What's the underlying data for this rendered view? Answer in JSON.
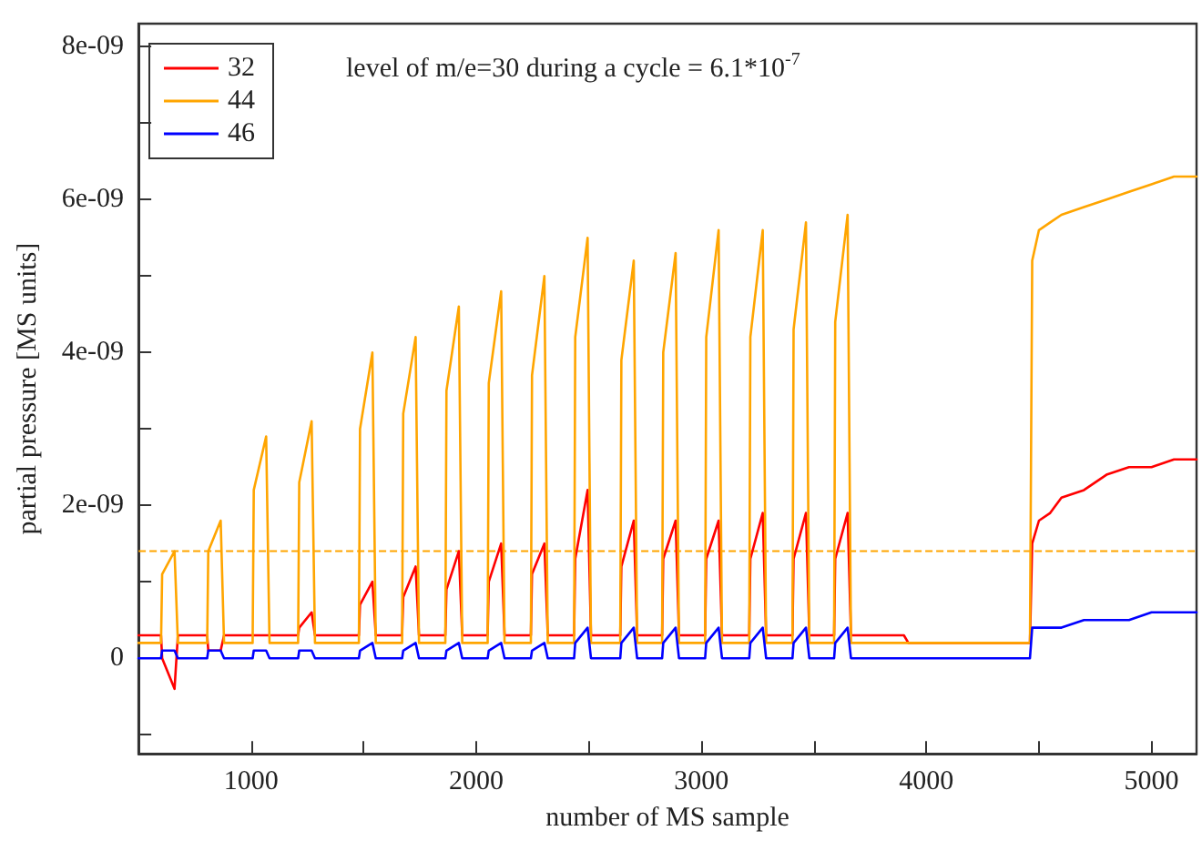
{
  "chart_data": {
    "type": "line",
    "xlabel": "number of MS sample",
    "ylabel": "partial pressure [MS units]",
    "annotations": [
      "level of m/e=30 during a cycle = 6.1*10$^{-7}$"
    ],
    "xlim": [
      500,
      5200
    ],
    "xticks": [
      {
        "value": 500,
        "label": null
      },
      1000,
      {
        "value": 1500,
        "label": null
      },
      2000,
      {
        "value": 2500,
        "label": null
      },
      3000,
      {
        "value": 3500,
        "label": null
      },
      4000,
      {
        "value": 4500,
        "label": null
      },
      5000
    ],
    "ylim": [
      -1.25e-09,
      8.3e-09
    ],
    "yticks": [
      {
        "value": -1e-09,
        "label": null
      },
      0,
      {
        "value": 1e-09,
        "label": null
      },
      {
        "value": 2e-09,
        "label": "2e-09"
      },
      {
        "value": 3e-09,
        "label": null
      },
      {
        "value": 4e-09,
        "label": "4e-09"
      },
      {
        "value": 5e-09,
        "label": null
      },
      {
        "value": 6e-09,
        "label": "6e-09"
      },
      {
        "value": 7e-09,
        "label": null
      },
      {
        "value": 8e-09,
        "label": "8e-09"
      }
    ],
    "grid": false,
    "legend": "top left",
    "marker": "none",
    "line_style": "solid",
    "ref_lines": [
      {
        "axis": "y",
        "value": 1.4e-09,
        "label": null,
        "color": "#ffa500",
        "line_style": "dashed"
      }
    ],
    "x": [
      500,
      600,
      605,
      660,
      675,
      805,
      810,
      865,
      880,
      1007,
      1012,
      1067,
      1082,
      1209,
      1214,
      1269,
      1284,
      1479,
      1484,
      1539,
      1554,
      1671,
      1676,
      1731,
      1746,
      1863,
      1868,
      1923,
      1938,
      2051,
      2056,
      2111,
      2126,
      2243,
      2248,
      2303,
      2318,
      2435,
      2440,
      2495,
      2510,
      2640,
      2645,
      2700,
      2715,
      2826,
      2831,
      2886,
      2901,
      3017,
      3022,
      3077,
      3092,
      3213,
      3218,
      3273,
      3288,
      3405,
      3410,
      3465,
      3480,
      3590,
      3595,
      3650,
      3665,
      3900,
      3920,
      4460,
      4470,
      4500,
      4550,
      4600,
      4700,
      4800,
      4900,
      5000,
      5100,
      5200
    ],
    "series": [
      {
        "name": "32",
        "color": "#ff0000",
        "values": [
          3e-10,
          3e-10,
          0,
          -4e-10,
          3e-10,
          3e-10,
          1e-10,
          1e-10,
          3e-10,
          3e-10,
          3e-10,
          3e-10,
          3e-10,
          3e-10,
          4e-10,
          6e-10,
          3e-10,
          3e-10,
          7e-10,
          1e-09,
          3e-10,
          3e-10,
          8e-10,
          1.2e-09,
          3e-10,
          3e-10,
          9e-10,
          1.4e-09,
          3e-10,
          3e-10,
          1e-09,
          1.5e-09,
          3e-10,
          3e-10,
          1.1e-09,
          1.5e-09,
          3e-10,
          3e-10,
          1.3e-09,
          2.2e-09,
          3e-10,
          3e-10,
          1.2e-09,
          1.8e-09,
          3e-10,
          3e-10,
          1.3e-09,
          1.8e-09,
          3e-10,
          3e-10,
          1.3e-09,
          1.8e-09,
          3e-10,
          3e-10,
          1.3e-09,
          1.9e-09,
          3e-10,
          3e-10,
          1.3e-09,
          1.9e-09,
          3e-10,
          3e-10,
          1.3e-09,
          1.9e-09,
          3e-10,
          3e-10,
          2e-10,
          2e-10,
          1.5e-09,
          1.8e-09,
          1.9e-09,
          2.1e-09,
          2.2e-09,
          2.4e-09,
          2.5e-09,
          2.5e-09,
          2.6e-09,
          2.6e-09
        ]
      },
      {
        "name": "44",
        "color": "#ffa500",
        "values": [
          2e-10,
          2e-10,
          1.1e-09,
          1.4e-09,
          2e-10,
          2e-10,
          1.4e-09,
          1.8e-09,
          2e-10,
          2e-10,
          2.2e-09,
          2.9e-09,
          2e-10,
          2e-10,
          2.3e-09,
          3.1e-09,
          2e-10,
          2e-10,
          3e-09,
          4e-09,
          2e-10,
          2e-10,
          3.2e-09,
          4.2e-09,
          2e-10,
          2e-10,
          3.5e-09,
          4.6e-09,
          2e-10,
          2e-10,
          3.6e-09,
          4.8e-09,
          2e-10,
          2e-10,
          3.7e-09,
          5e-09,
          2e-10,
          2e-10,
          4.2e-09,
          5.5e-09,
          2e-10,
          2e-10,
          3.9e-09,
          5.2e-09,
          2e-10,
          2e-10,
          4e-09,
          5.3e-09,
          2e-10,
          2e-10,
          4.2e-09,
          5.6e-09,
          2e-10,
          2e-10,
          4.2e-09,
          5.6e-09,
          2e-10,
          2e-10,
          4.3e-09,
          5.7e-09,
          2e-10,
          2e-10,
          4.4e-09,
          5.8e-09,
          2e-10,
          2e-10,
          2e-10,
          2e-10,
          5.2e-09,
          5.6e-09,
          5.7e-09,
          5.8e-09,
          5.9e-09,
          6e-09,
          6.1e-09,
          6.2e-09,
          6.3e-09,
          6.3e-09
        ]
      },
      {
        "name": "46",
        "color": "#0000ff",
        "values": [
          0,
          0,
          1e-10,
          1e-10,
          0,
          0,
          1e-10,
          1e-10,
          0,
          0,
          1e-10,
          1e-10,
          0,
          0,
          1e-10,
          1e-10,
          0,
          0,
          1e-10,
          2e-10,
          0,
          0,
          1e-10,
          2e-10,
          0,
          0,
          1e-10,
          2e-10,
          0,
          0,
          1e-10,
          2e-10,
          0,
          0,
          1e-10,
          2e-10,
          0,
          0,
          2e-10,
          4e-10,
          0,
          0,
          2e-10,
          4e-10,
          0,
          0,
          2e-10,
          4e-10,
          0,
          0,
          2e-10,
          4e-10,
          0,
          0,
          2e-10,
          4e-10,
          0,
          0,
          2e-10,
          4e-10,
          0,
          0,
          2e-10,
          4e-10,
          0,
          0,
          0,
          0,
          4e-10,
          4e-10,
          4e-10,
          4e-10,
          5e-10,
          5e-10,
          5e-10,
          6e-10,
          6e-10,
          6e-10
        ]
      }
    ]
  }
}
